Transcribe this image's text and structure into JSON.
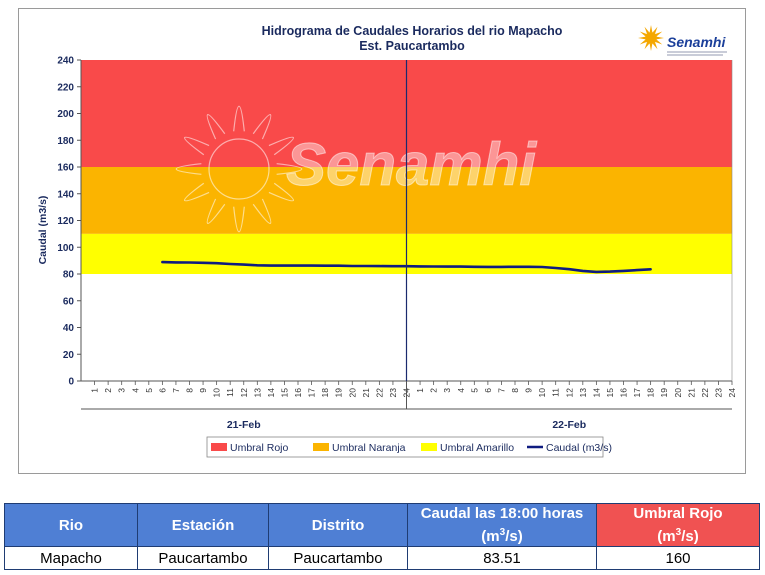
{
  "chart_data": {
    "type": "line",
    "title": "Hidrograma de Caudales Horarios del rio Mapacho",
    "subtitle": "Est. Paucartambo",
    "xlabel": "",
    "ylabel": "Caudal  (m3/s)",
    "ylim": [
      0,
      240
    ],
    "yticks": [
      0,
      20,
      40,
      60,
      80,
      100,
      120,
      140,
      160,
      180,
      200,
      220,
      240
    ],
    "x_hour_labels": [
      "1",
      "2",
      "3",
      "4",
      "5",
      "6",
      "7",
      "8",
      "9",
      "10",
      "11",
      "12",
      "13",
      "14",
      "15",
      "16",
      "17",
      "18",
      "19",
      "20",
      "21",
      "22",
      "23",
      "24"
    ],
    "days": [
      "21-Feb",
      "22-Feb"
    ],
    "grid": false,
    "legend_position": "bottom",
    "thresholds": [
      {
        "name": "Umbral Rojo",
        "from": 160,
        "to": 240,
        "color": "#f94a4a"
      },
      {
        "name": "Umbral Naranja",
        "from": 110,
        "to": 160,
        "color": "#fbb400"
      },
      {
        "name": "Umbral Amarillo",
        "from": 80,
        "to": 110,
        "color": "#ffff00"
      }
    ],
    "series": [
      {
        "name": "Caudal (m3/s)",
        "color": "#0f1c80",
        "points": [
          {
            "day": 1,
            "hour": 6,
            "value": 88.9
          },
          {
            "day": 1,
            "hour": 7,
            "value": 88.7
          },
          {
            "day": 1,
            "hour": 8,
            "value": 88.6
          },
          {
            "day": 1,
            "hour": 9,
            "value": 88.4
          },
          {
            "day": 1,
            "hour": 10,
            "value": 88.1
          },
          {
            "day": 1,
            "hour": 11,
            "value": 87.5
          },
          {
            "day": 1,
            "hour": 12,
            "value": 87.0
          },
          {
            "day": 1,
            "hour": 13,
            "value": 86.5
          },
          {
            "day": 1,
            "hour": 14,
            "value": 86.3
          },
          {
            "day": 1,
            "hour": 15,
            "value": 86.3
          },
          {
            "day": 1,
            "hour": 16,
            "value": 86.3
          },
          {
            "day": 1,
            "hour": 17,
            "value": 86.3
          },
          {
            "day": 1,
            "hour": 18,
            "value": 86.2
          },
          {
            "day": 1,
            "hour": 19,
            "value": 86.2
          },
          {
            "day": 1,
            "hour": 20,
            "value": 86.0
          },
          {
            "day": 1,
            "hour": 21,
            "value": 86.0
          },
          {
            "day": 1,
            "hour": 22,
            "value": 85.9
          },
          {
            "day": 1,
            "hour": 23,
            "value": 85.8
          },
          {
            "day": 1,
            "hour": 24,
            "value": 85.8
          },
          {
            "day": 2,
            "hour": 1,
            "value": 85.7
          },
          {
            "day": 2,
            "hour": 2,
            "value": 85.6
          },
          {
            "day": 2,
            "hour": 3,
            "value": 85.5
          },
          {
            "day": 2,
            "hour": 4,
            "value": 85.5
          },
          {
            "day": 2,
            "hour": 5,
            "value": 85.4
          },
          {
            "day": 2,
            "hour": 6,
            "value": 85.3
          },
          {
            "day": 2,
            "hour": 7,
            "value": 85.3
          },
          {
            "day": 2,
            "hour": 8,
            "value": 85.4
          },
          {
            "day": 2,
            "hour": 9,
            "value": 85.4
          },
          {
            "day": 2,
            "hour": 10,
            "value": 85.2
          },
          {
            "day": 2,
            "hour": 11,
            "value": 84.5
          },
          {
            "day": 2,
            "hour": 12,
            "value": 83.6
          },
          {
            "day": 2,
            "hour": 13,
            "value": 82.3
          },
          {
            "day": 2,
            "hour": 14,
            "value": 81.6
          },
          {
            "day": 2,
            "hour": 15,
            "value": 81.8
          },
          {
            "day": 2,
            "hour": 16,
            "value": 82.3
          },
          {
            "day": 2,
            "hour": 17,
            "value": 82.9
          },
          {
            "day": 2,
            "hour": 18,
            "value": 83.51
          }
        ]
      }
    ]
  },
  "branding": {
    "logo_text": "Senamhi",
    "watermark_text": "Senamhi",
    "logo_color": "#1b3f9a",
    "sun_color": "#f4a700"
  },
  "table": {
    "headers": {
      "rio": "Rio",
      "estacion": "Estación",
      "distrito": "Distrito",
      "caudal_line1": "Caudal las 18:00 horas",
      "caudal_unit_prefix": "(m",
      "caudal_unit_exp": "3",
      "caudal_unit_suffix": "/s)",
      "umbral_line1": "Umbral Rojo",
      "umbral_unit_prefix": "(m",
      "umbral_unit_exp": "3",
      "umbral_unit_suffix": "/s)"
    },
    "row": {
      "rio": "Mapacho",
      "estacion": "Paucartambo",
      "distrito": "Paucartambo",
      "caudal": "83.51",
      "umbral": "160"
    },
    "header_color": "#4f7fd4",
    "umbral_header_color": "#f05252"
  }
}
